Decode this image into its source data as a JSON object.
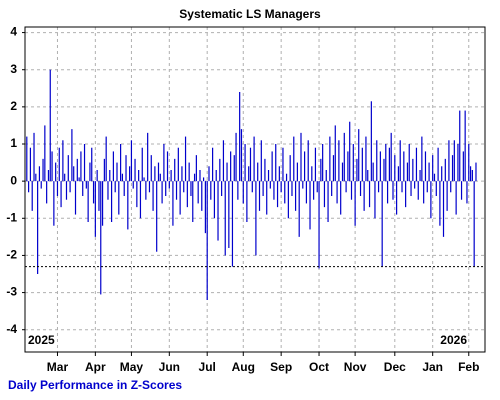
{
  "chart_data": {
    "type": "bar",
    "title": "Systematic LS Managers",
    "subtitle": "Daily Performance in Z-Scores",
    "annotations": [
      "2025",
      "2026"
    ],
    "color": "#0000cc",
    "grid": true,
    "hline": -2.3,
    "xlim": [
      -1,
      254
    ],
    "xticks": [
      {
        "value": 17,
        "label": "Mar"
      },
      {
        "value": 38,
        "label": "Apr"
      },
      {
        "value": 58,
        "label": "May"
      },
      {
        "value": 79,
        "label": "Jun"
      },
      {
        "value": 100,
        "label": "Jul"
      },
      {
        "value": 120,
        "label": "Aug"
      },
      {
        "value": 141,
        "label": "Sep"
      },
      {
        "value": 162,
        "label": "Oct"
      },
      {
        "value": 182,
        "label": "Nov"
      },
      {
        "value": 204,
        "label": "Dec"
      },
      {
        "value": 225,
        "label": "Jan"
      },
      {
        "value": 245,
        "label": "Feb"
      }
    ],
    "ylim": [
      -4.6,
      4.15
    ],
    "yticks": [
      -4,
      -3,
      -2,
      -1,
      0,
      1,
      2,
      3,
      4
    ],
    "values": [
      1.2,
      -0.3,
      0.9,
      -0.8,
      1.3,
      0.2,
      -2.5,
      0.4,
      -0.2,
      0.6,
      1.5,
      -0.6,
      0.3,
      3.0,
      0.8,
      -1.2,
      0.5,
      -0.4,
      0.9,
      -0.7,
      1.1,
      0.2,
      -0.5,
      0.7,
      -0.3,
      1.4,
      0.4,
      -0.9,
      0.6,
      0.1,
      0.8,
      -0.4,
      1.0,
      -0.2,
      -1.1,
      0.5,
      0.9,
      -0.6,
      -1.5,
      0.3,
      -0.8,
      -3.05,
      -1.2,
      0.6,
      1.2,
      -0.5,
      0.3,
      -1.1,
      0.8,
      -0.3,
      0.5,
      -0.9,
      1.0,
      0.2,
      -0.4,
      0.7,
      -1.3,
      0.4,
      1.1,
      -0.2,
      0.6,
      -0.7,
      0.3,
      -1.0,
      0.9,
      0.1,
      -0.5,
      1.3,
      -0.3,
      0.7,
      -0.8,
      0.4,
      -1.9,
      0.5,
      0.2,
      -0.6,
      1.0,
      -0.4,
      0.8,
      -0.2,
      0.3,
      -1.2,
      0.6,
      -0.5,
      0.9,
      -0.9,
      0.4,
      -0.3,
      1.2,
      -0.7,
      0.5,
      -0.4,
      -1.1,
      0.2,
      0.7,
      -0.6,
      0.3,
      -0.8,
      0.1,
      -1.4,
      -3.2,
      0.4,
      -0.5,
      0.9,
      -1.0,
      0.3,
      -1.6,
      0.6,
      -0.4,
      1.1,
      -2.0,
      0.5,
      -1.8,
      0.8,
      -2.3,
      0.7,
      1.3,
      -0.5,
      2.4,
      1.4,
      -0.6,
      1.0,
      -1.1,
      0.4,
      0.9,
      -0.3,
      1.2,
      -2.0,
      0.5,
      -0.8,
      1.1,
      -0.4,
      0.6,
      -0.9,
      0.3,
      -0.2,
      0.8,
      -0.5,
      1.0,
      -0.7,
      0.4,
      -0.3,
      0.9,
      -0.6,
      0.2,
      -1.0,
      0.7,
      -0.4,
      1.2,
      -0.8,
      0.5,
      -1.5,
      1.3,
      -0.2,
      0.8,
      -0.6,
      1.1,
      -1.3,
      0.4,
      -0.5,
      0.9,
      -0.3,
      -2.35,
      0.6,
      1.0,
      -0.7,
      0.3,
      -1.1,
      1.2,
      -0.4,
      0.7,
      1.5,
      -0.6,
      1.1,
      -0.9,
      0.5,
      1.3,
      -0.3,
      0.8,
      1.6,
      -0.5,
      1.0,
      -1.2,
      0.6,
      1.4,
      -0.4,
      0.9,
      -0.8,
      1.2,
      0.3,
      -0.7,
      2.15,
      0.5,
      -1.0,
      1.1,
      -0.3,
      0.8,
      -2.3,
      0.6,
      1.0,
      -0.6,
      0.9,
      1.3,
      -0.5,
      0.7,
      -0.9,
      0.4,
      1.1,
      -0.3,
      0.8,
      -0.7,
      0.5,
      1.0,
      -0.4,
      0.6,
      -0.2,
      0.9,
      -0.5,
      0.3,
      1.2,
      -0.6,
      0.8,
      -0.3,
      0.5,
      -1.0,
      0.7,
      0.2,
      -0.4,
      0.9,
      -1.2,
      0.4,
      -1.5,
      0.6,
      -0.8,
      1.1,
      -0.3,
      0.7,
      1.1,
      -0.9,
      1.0,
      1.9,
      -0.5,
      0.8,
      1.9,
      -0.6,
      1.0,
      0.4,
      0.3,
      -2.3,
      0.5
    ]
  }
}
